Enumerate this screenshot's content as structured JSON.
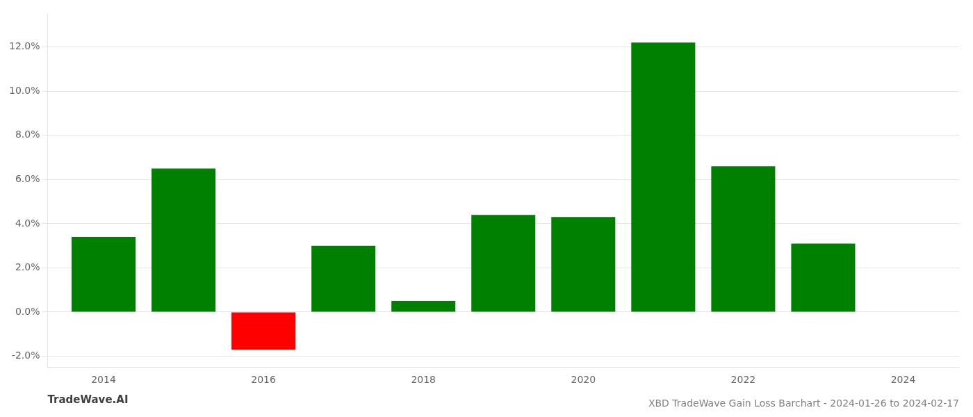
{
  "chart_data": {
    "type": "bar",
    "title": "XBD TradeWave Gain Loss Barchart - 2024-01-26 to 2024-02-17",
    "annotations": [
      "TradeWave.AI"
    ],
    "x": [
      2014,
      2015,
      2016,
      2017,
      2018,
      2019,
      2020,
      2021,
      2022,
      2023
    ],
    "values": [
      0.034,
      0.065,
      -0.017,
      0.03,
      0.005,
      0.044,
      0.043,
      0.122,
      0.066,
      0.031
    ],
    "colors": [
      "#008000",
      "#008000",
      "#ff0000",
      "#008000",
      "#008000",
      "#008000",
      "#008000",
      "#008000",
      "#008000",
      "#008000"
    ],
    "xlim": [
      2013.3,
      2024.7
    ],
    "xticks": [
      2014,
      2016,
      2018,
      2020,
      2022,
      2024
    ],
    "ylim": [
      -0.025,
      0.135
    ],
    "yticks": [
      {
        "value": -0.02,
        "label": "-2.0%"
      },
      {
        "value": 0.0,
        "label": "0.0%"
      },
      {
        "value": 0.02,
        "label": "2.0%"
      },
      {
        "value": 0.04,
        "label": "4.0%"
      },
      {
        "value": 0.06,
        "label": "6.0%"
      },
      {
        "value": 0.08,
        "label": "8.0%"
      },
      {
        "value": 0.1,
        "label": "10.0%"
      },
      {
        "value": 0.12,
        "label": "12.0%"
      }
    ],
    "grid": true
  }
}
